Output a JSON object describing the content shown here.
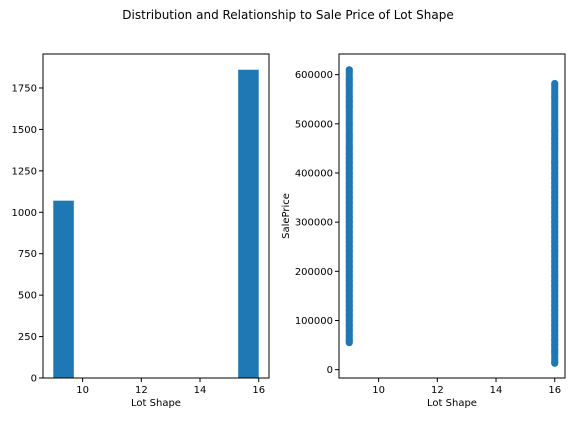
{
  "suptitle": "Distribution and Relationship to Sale Price of Lot Shape",
  "colors": {
    "series": "#1f77b4",
    "axis": "#000000"
  },
  "chart_data": [
    {
      "type": "bar",
      "title": "",
      "xlabel": "Lot Shape",
      "ylabel": "",
      "xlim": [
        8.65,
        16.35
      ],
      "ylim": [
        0,
        1955
      ],
      "xticks": [
        10,
        12,
        14,
        16
      ],
      "yticks": [
        0,
        250,
        500,
        750,
        1000,
        1250,
        1500,
        1750
      ],
      "bars": [
        {
          "x0": 9.0,
          "x1": 9.7,
          "value": 1070
        },
        {
          "x0": 15.3,
          "x1": 16.0,
          "value": 1860
        }
      ],
      "grid": false
    },
    {
      "type": "scatter",
      "title": "",
      "xlabel": "Lot Shape",
      "ylabel": "SalePrice",
      "xlim": [
        8.65,
        16.35
      ],
      "ylim": [
        -17000,
        642000
      ],
      "xticks": [
        10,
        12,
        14,
        16
      ],
      "yticks": [
        0,
        100000,
        200000,
        300000,
        400000,
        500000,
        600000
      ],
      "series": [
        {
          "x": 9,
          "y": [
            55000,
            60000,
            70000,
            80000,
            90000,
            100000,
            110000,
            120000,
            130000,
            140000,
            150000,
            160000,
            170000,
            180000,
            190000,
            200000,
            210000,
            220000,
            230000,
            240000,
            250000,
            260000,
            270000,
            280000,
            290000,
            300000,
            310000,
            320000,
            330000,
            340000,
            350000,
            360000,
            370000,
            380000,
            390000,
            400000,
            410000,
            420000,
            430000,
            440000,
            450000,
            455000,
            475000,
            500000,
            535000,
            545000,
            555000,
            580000,
            590000,
            610000
          ]
        },
        {
          "x": 16,
          "y": [
            13000,
            15000,
            35000,
            40000,
            50000,
            60000,
            70000,
            80000,
            90000,
            100000,
            110000,
            120000,
            130000,
            140000,
            150000,
            160000,
            170000,
            180000,
            190000,
            200000,
            210000,
            220000,
            230000,
            240000,
            250000,
            260000,
            270000,
            280000,
            290000,
            300000,
            310000,
            320000,
            330000,
            340000,
            350000,
            360000,
            370000,
            380000,
            390000,
            400000,
            410000,
            420000,
            425000,
            450000,
            460000,
            470000,
            485000,
            500000,
            555000,
            582000
          ]
        }
      ],
      "grid": false
    }
  ]
}
